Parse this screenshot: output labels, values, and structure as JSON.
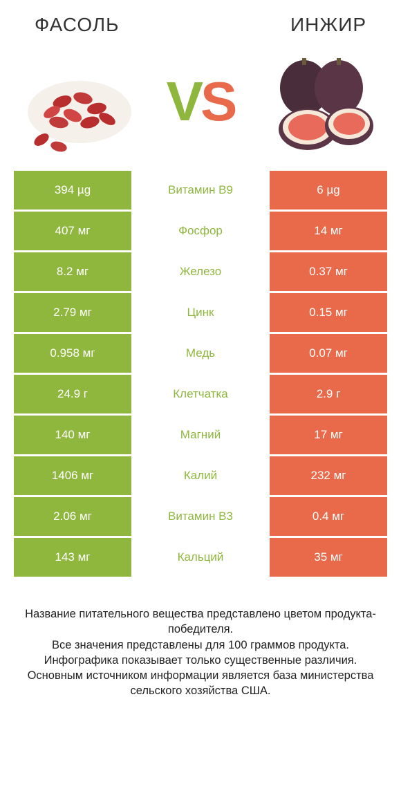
{
  "header": {
    "left_title": "Фасоль",
    "right_title": "Инжир"
  },
  "vs": {
    "v": "V",
    "s": "S"
  },
  "colors": {
    "left": "#8fb73e",
    "right": "#e86a4a"
  },
  "rows": [
    {
      "left": "394 µg",
      "mid": "Витамин B9",
      "right": "6 µg",
      "mid_color": "#8fb73e"
    },
    {
      "left": "407 мг",
      "mid": "Фосфор",
      "right": "14 мг",
      "mid_color": "#8fb73e"
    },
    {
      "left": "8.2 мг",
      "mid": "Железо",
      "right": "0.37 мг",
      "mid_color": "#8fb73e"
    },
    {
      "left": "2.79 мг",
      "mid": "Цинк",
      "right": "0.15 мг",
      "mid_color": "#8fb73e"
    },
    {
      "left": "0.958 мг",
      "mid": "Медь",
      "right": "0.07 мг",
      "mid_color": "#8fb73e"
    },
    {
      "left": "24.9 г",
      "mid": "Клетчатка",
      "right": "2.9 г",
      "mid_color": "#8fb73e"
    },
    {
      "left": "140 мг",
      "mid": "Магний",
      "right": "17 мг",
      "mid_color": "#8fb73e"
    },
    {
      "left": "1406 мг",
      "mid": "Калий",
      "right": "232 мг",
      "mid_color": "#8fb73e"
    },
    {
      "left": "2.06 мг",
      "mid": "Витамин B3",
      "right": "0.4 мг",
      "mid_color": "#8fb73e"
    },
    {
      "left": "143 мг",
      "mid": "Кальций",
      "right": "35 мг",
      "mid_color": "#8fb73e"
    }
  ],
  "footer": {
    "line1": "Название питательного вещества представлено цветом продукта-победителя.",
    "line2": "Все значения представлены для 100 граммов продукта.",
    "line3": "Инфографика показывает только существенные различия.",
    "line4": "Основным источником информации является база министерства сельского хозяйства США."
  }
}
